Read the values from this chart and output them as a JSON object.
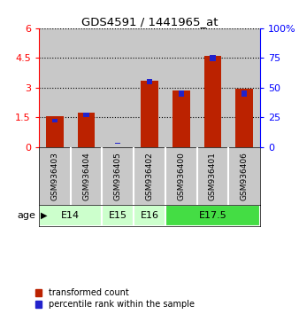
{
  "title": "GDS4591 / 1441965_at",
  "samples": [
    "GSM936403",
    "GSM936404",
    "GSM936405",
    "GSM936402",
    "GSM936400",
    "GSM936401",
    "GSM936406"
  ],
  "transformed_count": [
    1.55,
    1.75,
    0.0,
    3.35,
    2.85,
    4.6,
    2.95
  ],
  "percentile_rank": [
    22,
    27,
    3,
    55,
    45,
    75,
    45
  ],
  "left_ylim": [
    0,
    6
  ],
  "left_yticks": [
    0,
    1.5,
    3,
    4.5,
    6
  ],
  "left_yticklabels": [
    "0",
    "1.5",
    "3",
    "4.5",
    "6"
  ],
  "right_ylim": [
    0,
    100
  ],
  "right_yticks": [
    0,
    25,
    50,
    75,
    100
  ],
  "right_yticklabels": [
    "0",
    "25",
    "50",
    "75",
    "100%"
  ],
  "age_groups": [
    {
      "label": "E14",
      "start": 0,
      "end": 2,
      "color": "#ccffcc"
    },
    {
      "label": "E15",
      "start": 2,
      "end": 3,
      "color": "#ccffcc"
    },
    {
      "label": "E16",
      "start": 3,
      "end": 4,
      "color": "#ccffcc"
    },
    {
      "label": "E17.5",
      "start": 4,
      "end": 7,
      "color": "#44dd44"
    }
  ],
  "bar_color_red": "#bb2200",
  "bar_color_blue": "#2222cc",
  "red_bar_width": 0.55,
  "blue_bar_width": 0.18,
  "grid_color": "black",
  "legend_red": "transformed count",
  "legend_blue": "percentile rank within the sample",
  "sample_bg_color": "#c8c8c8",
  "age_label": "age"
}
